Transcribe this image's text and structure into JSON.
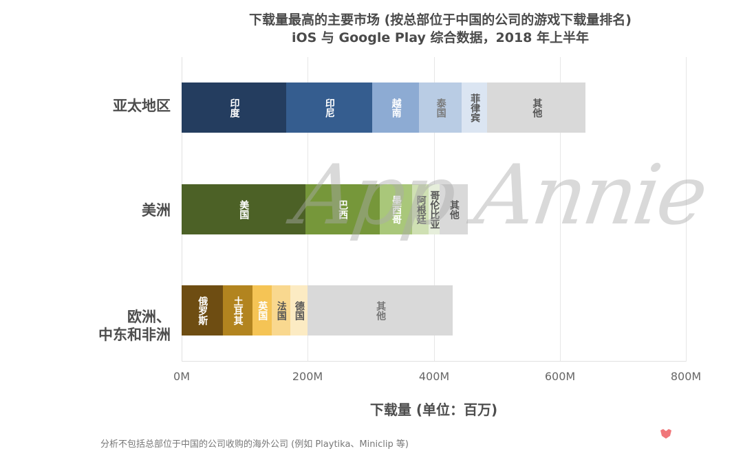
{
  "header": {
    "title_line1": "下载量最高的主要市场 (按总部位于中国的公司的游戏下载量排名)",
    "title_line2": "iOS 与 Google Play 综合数据，2018 年上半年"
  },
  "axis": {
    "x_ticks": [
      "0M",
      "200M",
      "400M",
      "600M",
      "800M"
    ],
    "x_label": "下载量 (单位：百万)"
  },
  "categories": {
    "apac": "亚太地区",
    "americas": "美洲",
    "emea_line1": "欧洲、",
    "emea_line2": "中东和非洲"
  },
  "bars": {
    "apac": [
      {
        "label": "印度",
        "value": 166,
        "color": "#243d5f",
        "text_color": "#ffffff"
      },
      {
        "label": "印尼",
        "value": 136,
        "color": "#355d8f",
        "text_color": "#ffffff"
      },
      {
        "label": "越南",
        "value": 75,
        "color": "#8dabd3",
        "text_color": "#ffffff"
      },
      {
        "label": "泰国",
        "value": 67,
        "color": "#b9cce4",
        "text_color": "#7a7a7a"
      },
      {
        "label": "菲律宾",
        "value": 41,
        "color": "#dbe5f2",
        "text_color": "#555555"
      },
      {
        "label": "其他",
        "value": 156,
        "color": "#d9d9d9",
        "text_color": "#555555"
      }
    ],
    "americas": [
      {
        "label": "美国",
        "value": 196,
        "color": "#4c6126",
        "text_color": "#ffffff"
      },
      {
        "label": "巴西",
        "value": 118,
        "color": "#76973a",
        "text_color": "#ffffff"
      },
      {
        "label": "墨西哥",
        "value": 52,
        "color": "#a9c77a",
        "text_color": "#ffffff"
      },
      {
        "label": "阿根廷",
        "value": 26,
        "color": "#cfe0b3",
        "text_color": "#666666"
      },
      {
        "label": "哥伦比亚",
        "value": 17,
        "color": "#e6eedb",
        "text_color": "#555555"
      },
      {
        "label": "其他",
        "value": 45,
        "color": "#d9d9d9",
        "text_color": "#555555"
      }
    ],
    "emea": [
      {
        "label": "俄罗斯",
        "value": 65,
        "color": "#6e4d12",
        "text_color": "#ffffff"
      },
      {
        "label": "土耳其",
        "value": 47,
        "color": "#b2841f",
        "text_color": "#ffffff"
      },
      {
        "label": "英国",
        "value": 31,
        "color": "#f5c455",
        "text_color": "#ffffff"
      },
      {
        "label": "法国",
        "value": 29,
        "color": "#f9d88f",
        "text_color": "#555555"
      },
      {
        "label": "德国",
        "value": 28,
        "color": "#fcebc3",
        "text_color": "#555555"
      },
      {
        "label": "其他",
        "value": 230,
        "color": "#d9d9d9",
        "text_color": "#777777"
      }
    ]
  },
  "watermark": "App Annie",
  "footnote": "分析不包括总部位于中国的公司收购的海外公司 (例如 Playtika、Miniclip 等)",
  "chart_data": {
    "type": "bar",
    "orientation": "horizontal",
    "stacked": true,
    "title": "下载量最高的主要市场 (按总部位于中国的公司的游戏下载量排名)",
    "subtitle": "iOS 与 Google Play 综合数据，2018 年上半年",
    "xlabel": "下载量 (单位：百万)",
    "ylabel": "",
    "xlim": [
      0,
      800
    ],
    "x_ticks": [
      "0M",
      "200M",
      "400M",
      "600M",
      "800M"
    ],
    "grid": true,
    "categories": [
      "亚太地区",
      "美洲",
      "欧洲、中东和非洲"
    ],
    "stacks": [
      {
        "category": "亚太地区",
        "segments": [
          {
            "name": "印度",
            "value": 166
          },
          {
            "name": "印尼",
            "value": 136
          },
          {
            "name": "越南",
            "value": 75
          },
          {
            "name": "泰国",
            "value": 67
          },
          {
            "name": "菲律宾",
            "value": 41
          },
          {
            "name": "其他",
            "value": 156
          }
        ],
        "total": 641
      },
      {
        "category": "美洲",
        "segments": [
          {
            "name": "美国",
            "value": 196
          },
          {
            "name": "巴西",
            "value": 118
          },
          {
            "name": "墨西哥",
            "value": 52
          },
          {
            "name": "阿根廷",
            "value": 26
          },
          {
            "name": "哥伦比亚",
            "value": 17
          },
          {
            "name": "其他",
            "value": 45
          }
        ],
        "total": 454
      },
      {
        "category": "欧洲、中东和非洲",
        "segments": [
          {
            "name": "俄罗斯",
            "value": 65
          },
          {
            "name": "土耳其",
            "value": 47
          },
          {
            "name": "英国",
            "value": 31
          },
          {
            "name": "法国",
            "value": 29
          },
          {
            "name": "德国",
            "value": 28
          },
          {
            "name": "其他",
            "value": 230
          }
        ],
        "total": 430
      }
    ],
    "annotations": [
      "App Annie (watermark)"
    ],
    "footnote": "分析不包括总部位于中国的公司收购的海外公司 (例如 Playtika、Miniclip 等)"
  }
}
